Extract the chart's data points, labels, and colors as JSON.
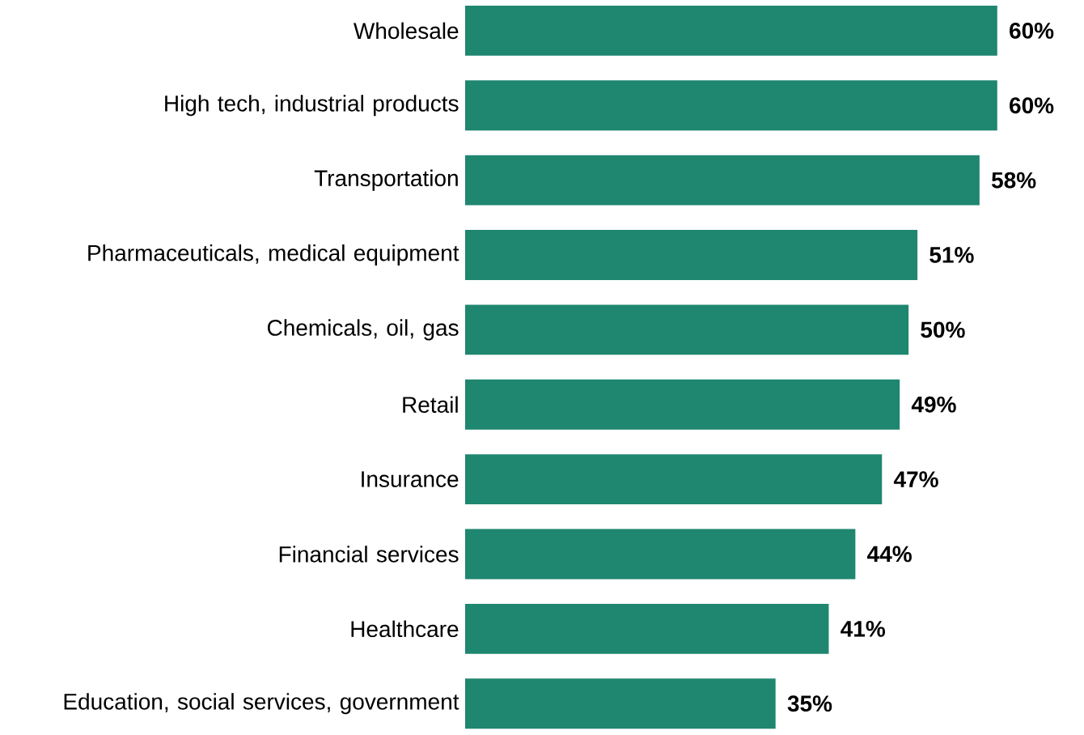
{
  "chart_data": {
    "type": "bar",
    "orientation": "horizontal",
    "categories": [
      "Wholesale",
      "High tech, industrial products",
      "Transportation",
      "Pharmaceuticals, medical equipment",
      "Chemicals, oil, gas",
      "Retail",
      "Insurance",
      "Financial services",
      "Healthcare",
      "Education, social services, government"
    ],
    "values": [
      60,
      60,
      58,
      51,
      50,
      49,
      47,
      44,
      41,
      35
    ],
    "value_labels": [
      "60%",
      "60%",
      "58%",
      "51%",
      "50%",
      "49%",
      "47%",
      "44%",
      "41%",
      "35%"
    ],
    "color": "#1f8670"
  }
}
